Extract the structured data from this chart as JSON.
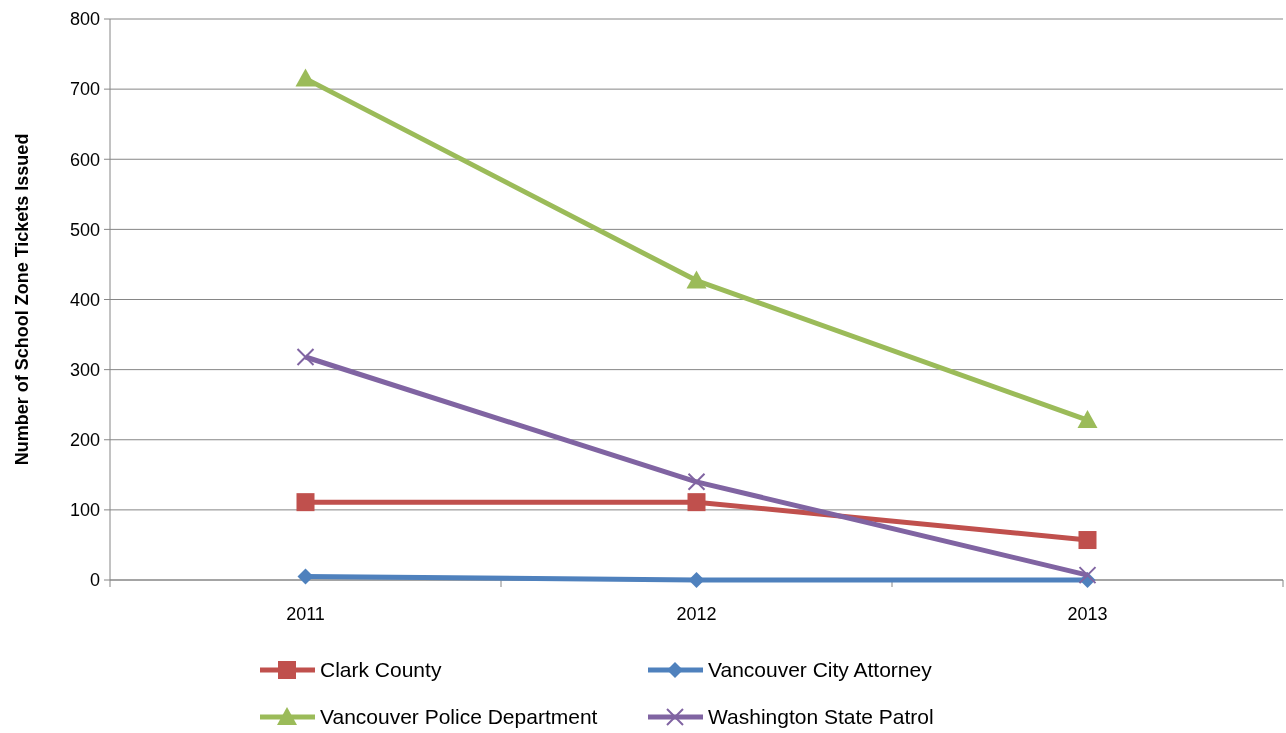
{
  "chart_data": {
    "type": "line",
    "ylabel": "Number of School Zone Tickets Issued",
    "categories": [
      "2011",
      "2012",
      "2013"
    ],
    "series": [
      {
        "name": "Clark County",
        "color": "#c0504d",
        "marker": "square",
        "values": [
          111,
          111,
          57
        ]
      },
      {
        "name": "Vancouver City Attorney",
        "color": "#4f81bd",
        "marker": "diamond",
        "values": [
          5,
          0,
          0
        ]
      },
      {
        "name": "Vancouver Police Department",
        "color": "#9bbb59",
        "marker": "triangle",
        "values": [
          715,
          427,
          228
        ]
      },
      {
        "name": "Washington State Patrol",
        "color": "#8064a2",
        "marker": "cross",
        "values": [
          318,
          140,
          7
        ]
      }
    ],
    "ylim": [
      0,
      800
    ],
    "yticks": [
      0,
      100,
      200,
      300,
      400,
      500,
      600,
      700,
      800
    ],
    "grid": "y",
    "legend": "bottom"
  }
}
